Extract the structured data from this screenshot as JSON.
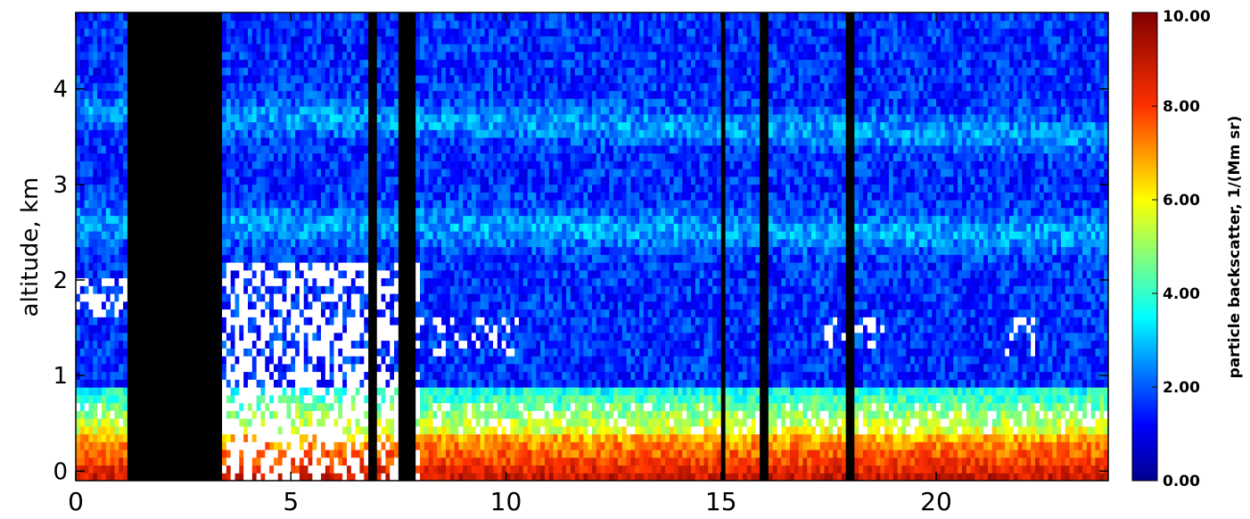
{
  "chart_data": {
    "type": "heatmap",
    "title": "",
    "xlabel": "",
    "ylabel": "altitude, km",
    "xlim": [
      0,
      24
    ],
    "ylim": [
      -0.1,
      4.8
    ],
    "x_ticks": [
      0,
      5,
      10,
      15,
      20
    ],
    "y_ticks": [
      0,
      1,
      2,
      3,
      4
    ],
    "x_tick_labels": [
      "0",
      "5",
      "10",
      "15",
      "20"
    ],
    "y_tick_labels": [
      "0",
      "1",
      "2",
      "3",
      "4"
    ],
    "colorbar": {
      "label": "particle backscatter, 1/(Mm sr)",
      "range": [
        0,
        10
      ],
      "ticks": [
        0,
        2,
        4,
        6,
        8,
        10
      ],
      "tick_labels": [
        "0.00",
        "2.00",
        "4.00",
        "6.00",
        "8.00",
        "10.00"
      ],
      "colormap": "rainbow (blue-cyan-yellow-red)"
    },
    "no_data_color": "#000000",
    "saturated_color": "#ffffff",
    "no_data_periods_hours": [
      [
        1.2,
        3.4
      ],
      [
        6.8,
        7.0
      ],
      [
        7.5,
        7.9
      ],
      [
        15.0,
        15.1
      ],
      [
        15.9,
        16.1
      ],
      [
        17.9,
        18.1
      ]
    ],
    "features": [
      {
        "altitude_range_km": [
          3.6,
          3.9
        ],
        "backscatter_approx": 2.5
      },
      {
        "altitude_range_km": [
          2.4,
          2.8
        ],
        "backscatter_approx": 2.5
      },
      {
        "altitude_range_km": [
          0.0,
          0.9
        ],
        "backscatter_approx": 6.5
      }
    ]
  },
  "colors": {
    "low": "#00008f",
    "mid_low": "#0050ff",
    "mid": "#00ffff",
    "mid_high": "#ffff00",
    "high": "#ff2000",
    "max": "#800000"
  }
}
